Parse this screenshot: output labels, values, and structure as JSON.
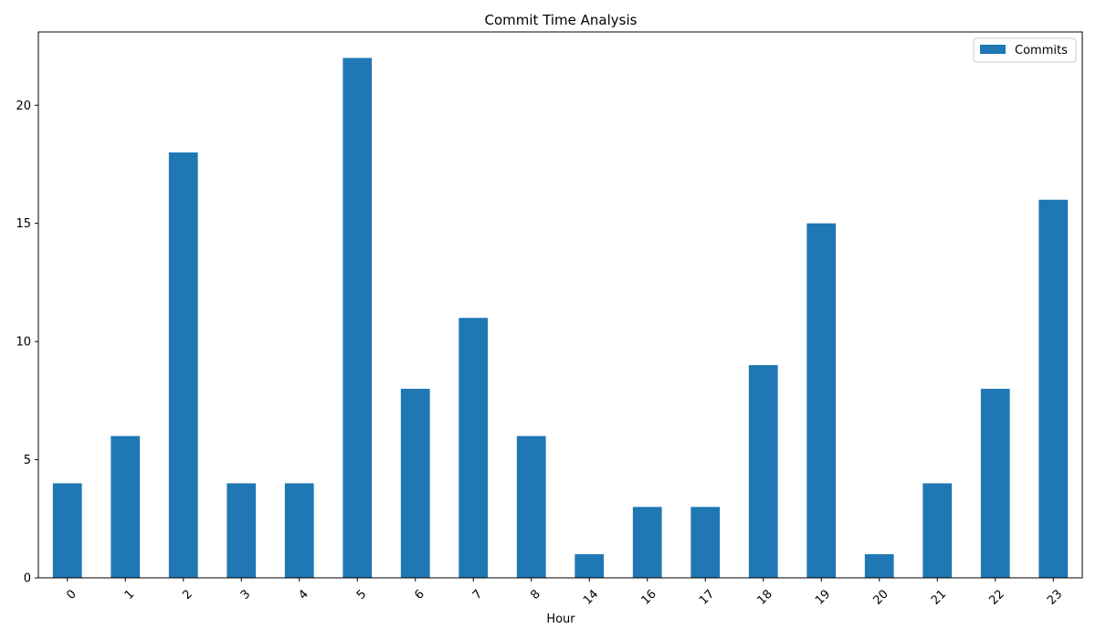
{
  "chart_data": {
    "type": "bar",
    "title": "Commit Time Analysis",
    "xlabel": "Hour",
    "ylabel": "",
    "categories": [
      "0",
      "1",
      "2",
      "3",
      "4",
      "5",
      "6",
      "7",
      "8",
      "14",
      "16",
      "17",
      "18",
      "19",
      "20",
      "21",
      "22",
      "23"
    ],
    "series": [
      {
        "name": "Commits",
        "values": [
          4,
          6,
          18,
          4,
          4,
          22,
          8,
          11,
          6,
          1,
          3,
          3,
          9,
          15,
          1,
          4,
          8,
          16
        ],
        "color": "#1f77b4"
      }
    ],
    "ylim": [
      0,
      23.1
    ],
    "yticks": [
      0,
      5,
      10,
      15,
      20
    ],
    "grid": false,
    "legend_position": "top-right"
  }
}
